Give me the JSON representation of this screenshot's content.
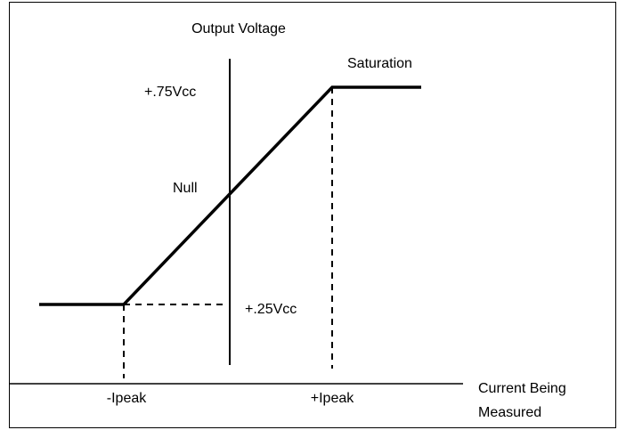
{
  "y_axis_label": "Output Voltage",
  "x_axis_label": [
    "Current Being",
    "Measured"
  ],
  "levels": {
    "high": "+.75Vcc",
    "null": "Null",
    "low": "+.25Vcc"
  },
  "region": "Saturation",
  "x_marks": {
    "negative": "-Ipeak",
    "positive": "+Ipeak"
  }
}
